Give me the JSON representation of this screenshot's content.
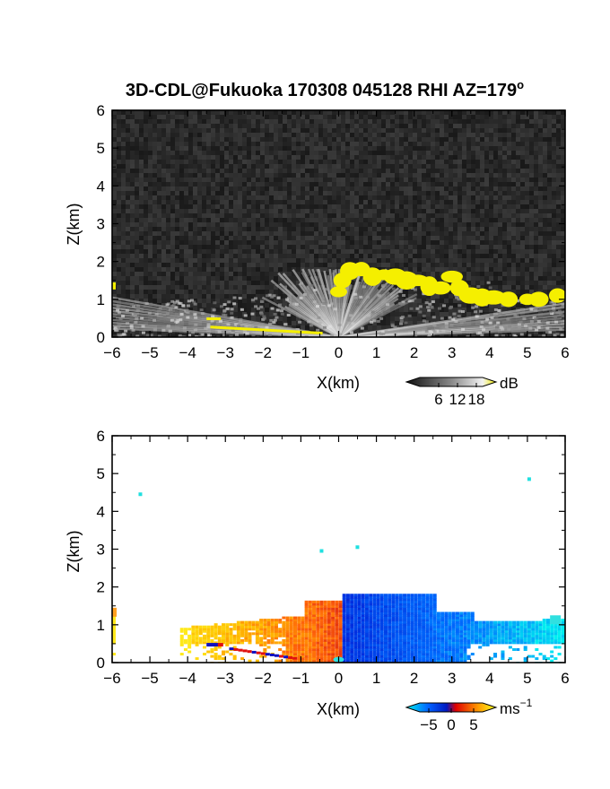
{
  "title": "3D-CDL@Fukuoka 170308 045128 RHI AZ=179",
  "title_superscript": "o",
  "chart_data": [
    {
      "type": "heatmap",
      "name": "backscatter-intensity",
      "xlabel": "X(km)",
      "ylabel": "Z(km)",
      "xlim": [
        -6,
        6
      ],
      "ylim": [
        0,
        6
      ],
      "xticks": [
        "-6",
        "-5",
        "-4",
        "-3",
        "-2",
        "-1",
        "0",
        "1",
        "2",
        "3",
        "4",
        "5",
        "6"
      ],
      "yticks": [
        "0",
        "1",
        "2",
        "3",
        "4",
        "5",
        "6"
      ],
      "colorbar": {
        "unit": "dB",
        "ticks": [
          "6",
          "12",
          "18"
        ],
        "range": [
          0,
          20
        ]
      },
      "colors": {
        "background": "#2a2a2a",
        "high": "#f5ef00"
      }
    },
    {
      "type": "heatmap",
      "name": "doppler-velocity",
      "xlabel": "X(km)",
      "ylabel": "Z(km)",
      "xlim": [
        -6,
        6
      ],
      "ylim": [
        0,
        6
      ],
      "xticks": [
        "-6",
        "-5",
        "-4",
        "-3",
        "-2",
        "-1",
        "0",
        "1",
        "2",
        "3",
        "4",
        "5",
        "6"
      ],
      "yticks": [
        "0",
        "1",
        "2",
        "3",
        "4",
        "5",
        "6"
      ],
      "colorbar": {
        "unit": "ms",
        "unit_superscript": "−1",
        "ticks": [
          "−5",
          "0",
          "5"
        ],
        "range": [
          -7,
          7
        ]
      },
      "colors": {
        "negative": "#0a4fe8",
        "zero": "#ffffff",
        "positive": "#ff7a10"
      }
    }
  ]
}
